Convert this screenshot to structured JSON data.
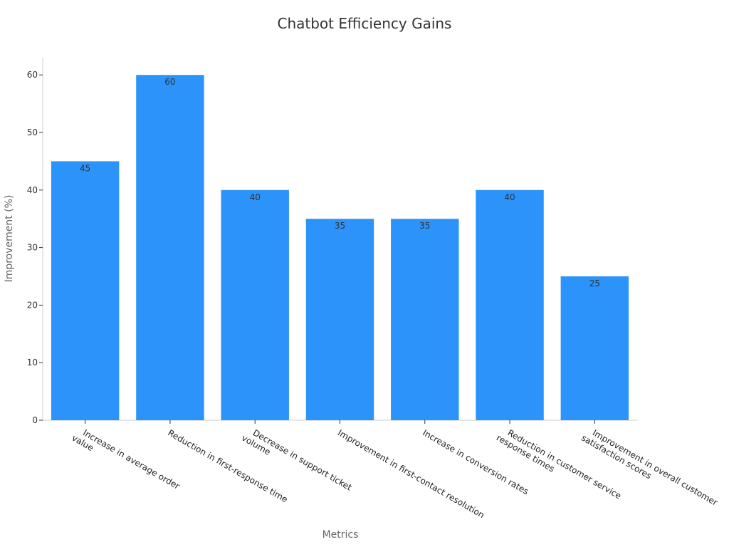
{
  "chart_data": {
    "type": "bar",
    "title": "Chatbot Efficiency Gains",
    "xlabel": "Metrics",
    "ylabel": "Improvement (%)",
    "ylim": [
      0,
      63
    ],
    "yticks": [
      0,
      10,
      20,
      30,
      40,
      50,
      60
    ],
    "grid": false,
    "bar_color": "#2b93fa",
    "categories": [
      [
        "Increase in average order",
        "value"
      ],
      [
        "Reduction in first-response time"
      ],
      [
        "Decrease in support ticket",
        "volume"
      ],
      [
        "Improvement in first-contact resolution"
      ],
      [
        "Increase in conversion rates"
      ],
      [
        "Reduction in customer service",
        "response times"
      ],
      [
        "Improvement in overall customer",
        "satisfaction scores"
      ]
    ],
    "values": [
      45,
      60,
      40,
      35,
      35,
      40,
      25
    ]
  }
}
